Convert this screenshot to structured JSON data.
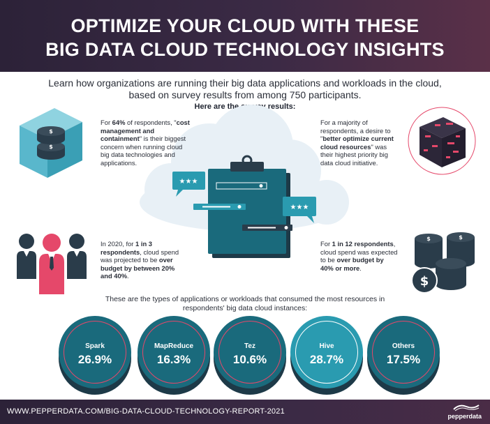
{
  "header": {
    "title_line1": "OPTIMIZE YOUR CLOUD WITH THESE",
    "title_line2": "BIG DATA CLOUD TECHNOLOGY INSIGHTS"
  },
  "intro": "Learn how organizations are running their big data applications and workloads in the cloud, based on survey results from among 750 participants.",
  "subhead": "Here are the survey results:",
  "findings": {
    "top_left": {
      "p1": "For ",
      "b1": "64%",
      "p2": " of respondents, \"",
      "b2": "cost management and containment",
      "p3": "\" is their biggest concern when running cloud big data technologies and applications."
    },
    "top_right": {
      "p1": "For a majority of respondents, a desire to \"",
      "b1": "better optimize current cloud resources",
      "p2": "\" was their highest priority big data cloud initiative."
    },
    "bottom_left": {
      "p1": "In 2020, for ",
      "b1": "1 in 3 respondents",
      "p2": ", cloud spend was projected to be ",
      "b2": "over budget by between 20% and 40%",
      "p3": "."
    },
    "bottom_right": {
      "p1": "For ",
      "b1": "1 in 12 respondents",
      "p2": ", cloud spend was expected to be ",
      "b2": "over budget by 40% or more",
      "p3": "."
    }
  },
  "types_intro": "These are the types of applications or workloads that consumed the most resources in respondents' big data cloud instances:",
  "workloads": [
    {
      "label": "Spark",
      "value": "26.9%"
    },
    {
      "label": "MapReduce",
      "value": "16.3%"
    },
    {
      "label": "Tez",
      "value": "10.6%"
    },
    {
      "label": "Hive",
      "value": "28.7%"
    },
    {
      "label": "Others",
      "value": "17.5%"
    }
  ],
  "footer": {
    "url": "WWW.PEPPERDATA.COM/BIG-DATA-CLOUD-TECHNOLOGY-REPORT-2021",
    "brand": "pepperdata"
  },
  "icons": {
    "top_left": "coin-stack-in-cube-icon",
    "top_right": "data-cube-icon",
    "center": "clipboard-cloud-icon",
    "bottom_left": "people-icon",
    "bottom_right": "coin-stacks-icon",
    "rating": "star-rating-icon",
    "currency": "dollar-icon"
  },
  "colors": {
    "header": "#3b2a45",
    "teal": "#1a6a7c",
    "teal_highlight": "#2a9bb0",
    "accent": "#e5486a"
  }
}
